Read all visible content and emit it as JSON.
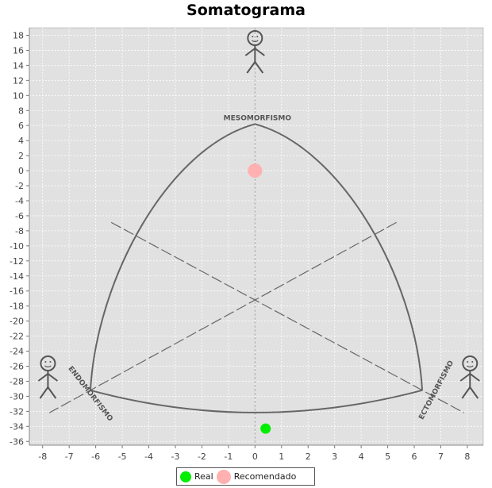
{
  "chart_data": {
    "type": "scatter",
    "title": "Somatograma",
    "xlim": [
      -8.5,
      8.6
    ],
    "ylim": [
      -36.5,
      19
    ],
    "x_ticks": [
      -8,
      -7,
      -6,
      -5,
      -4,
      -3,
      -2,
      -1,
      0,
      1,
      2,
      3,
      4,
      5,
      6,
      7,
      8
    ],
    "y_ticks": [
      18,
      16,
      14,
      12,
      10,
      8,
      6,
      4,
      2,
      0,
      -2,
      -4,
      -6,
      -8,
      -10,
      -12,
      -14,
      -16,
      -18,
      -20,
      -22,
      -24,
      -26,
      -28,
      -30,
      -32,
      -34,
      -36
    ],
    "grid": true,
    "legend_placement": "bottom-center",
    "axis_words": {
      "top": "MESOMORFISMO",
      "left": "ENDOMORFISMO",
      "right": "ECTOMORFISMO"
    },
    "triangle_vertices": {
      "top": [
        0,
        6.2
      ],
      "left": [
        -6.2,
        -29.2
      ],
      "right": [
        6.3,
        -29.2
      ],
      "bottom": [
        0,
        -34.5
      ]
    },
    "series": [
      {
        "name": "Real",
        "color": "#00ee00",
        "points": [
          [
            0.4,
            -34.3
          ]
        ]
      },
      {
        "name": "Recomendado",
        "color": "#ffb0b0",
        "points": [
          [
            0,
            0
          ]
        ]
      }
    ],
    "colors": {
      "plot_background": "#e1e1e1",
      "gridline": "#ffffff",
      "outline": "#666666"
    }
  },
  "legend": {
    "real_label": "Real",
    "recomendado_label": "Recomendado"
  }
}
